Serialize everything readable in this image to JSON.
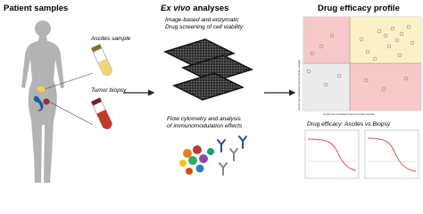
{
  "panels": {
    "patient": {
      "title": "Patient samples",
      "ascites": "Ascites sample",
      "biopsy": "Tumor biopsy"
    },
    "exvivo": {
      "title_italic": "Ex vivo",
      "title_rest": "analyses",
      "screening": [
        "Image-based and enzymatic",
        "Drug screening of cell viability"
      ],
      "flow": [
        "Flow cytometry and analysis",
        "of immunomodulation effects"
      ]
    },
    "profile": {
      "title": "Drug efficacy profile",
      "y_label": "Growth rate normalized response Biopsy samples",
      "x_label": "Growth rate normalized response Ascites samples",
      "comparison_title": "Drug efficacy: Ascites vs Biopsy"
    }
  }
}
